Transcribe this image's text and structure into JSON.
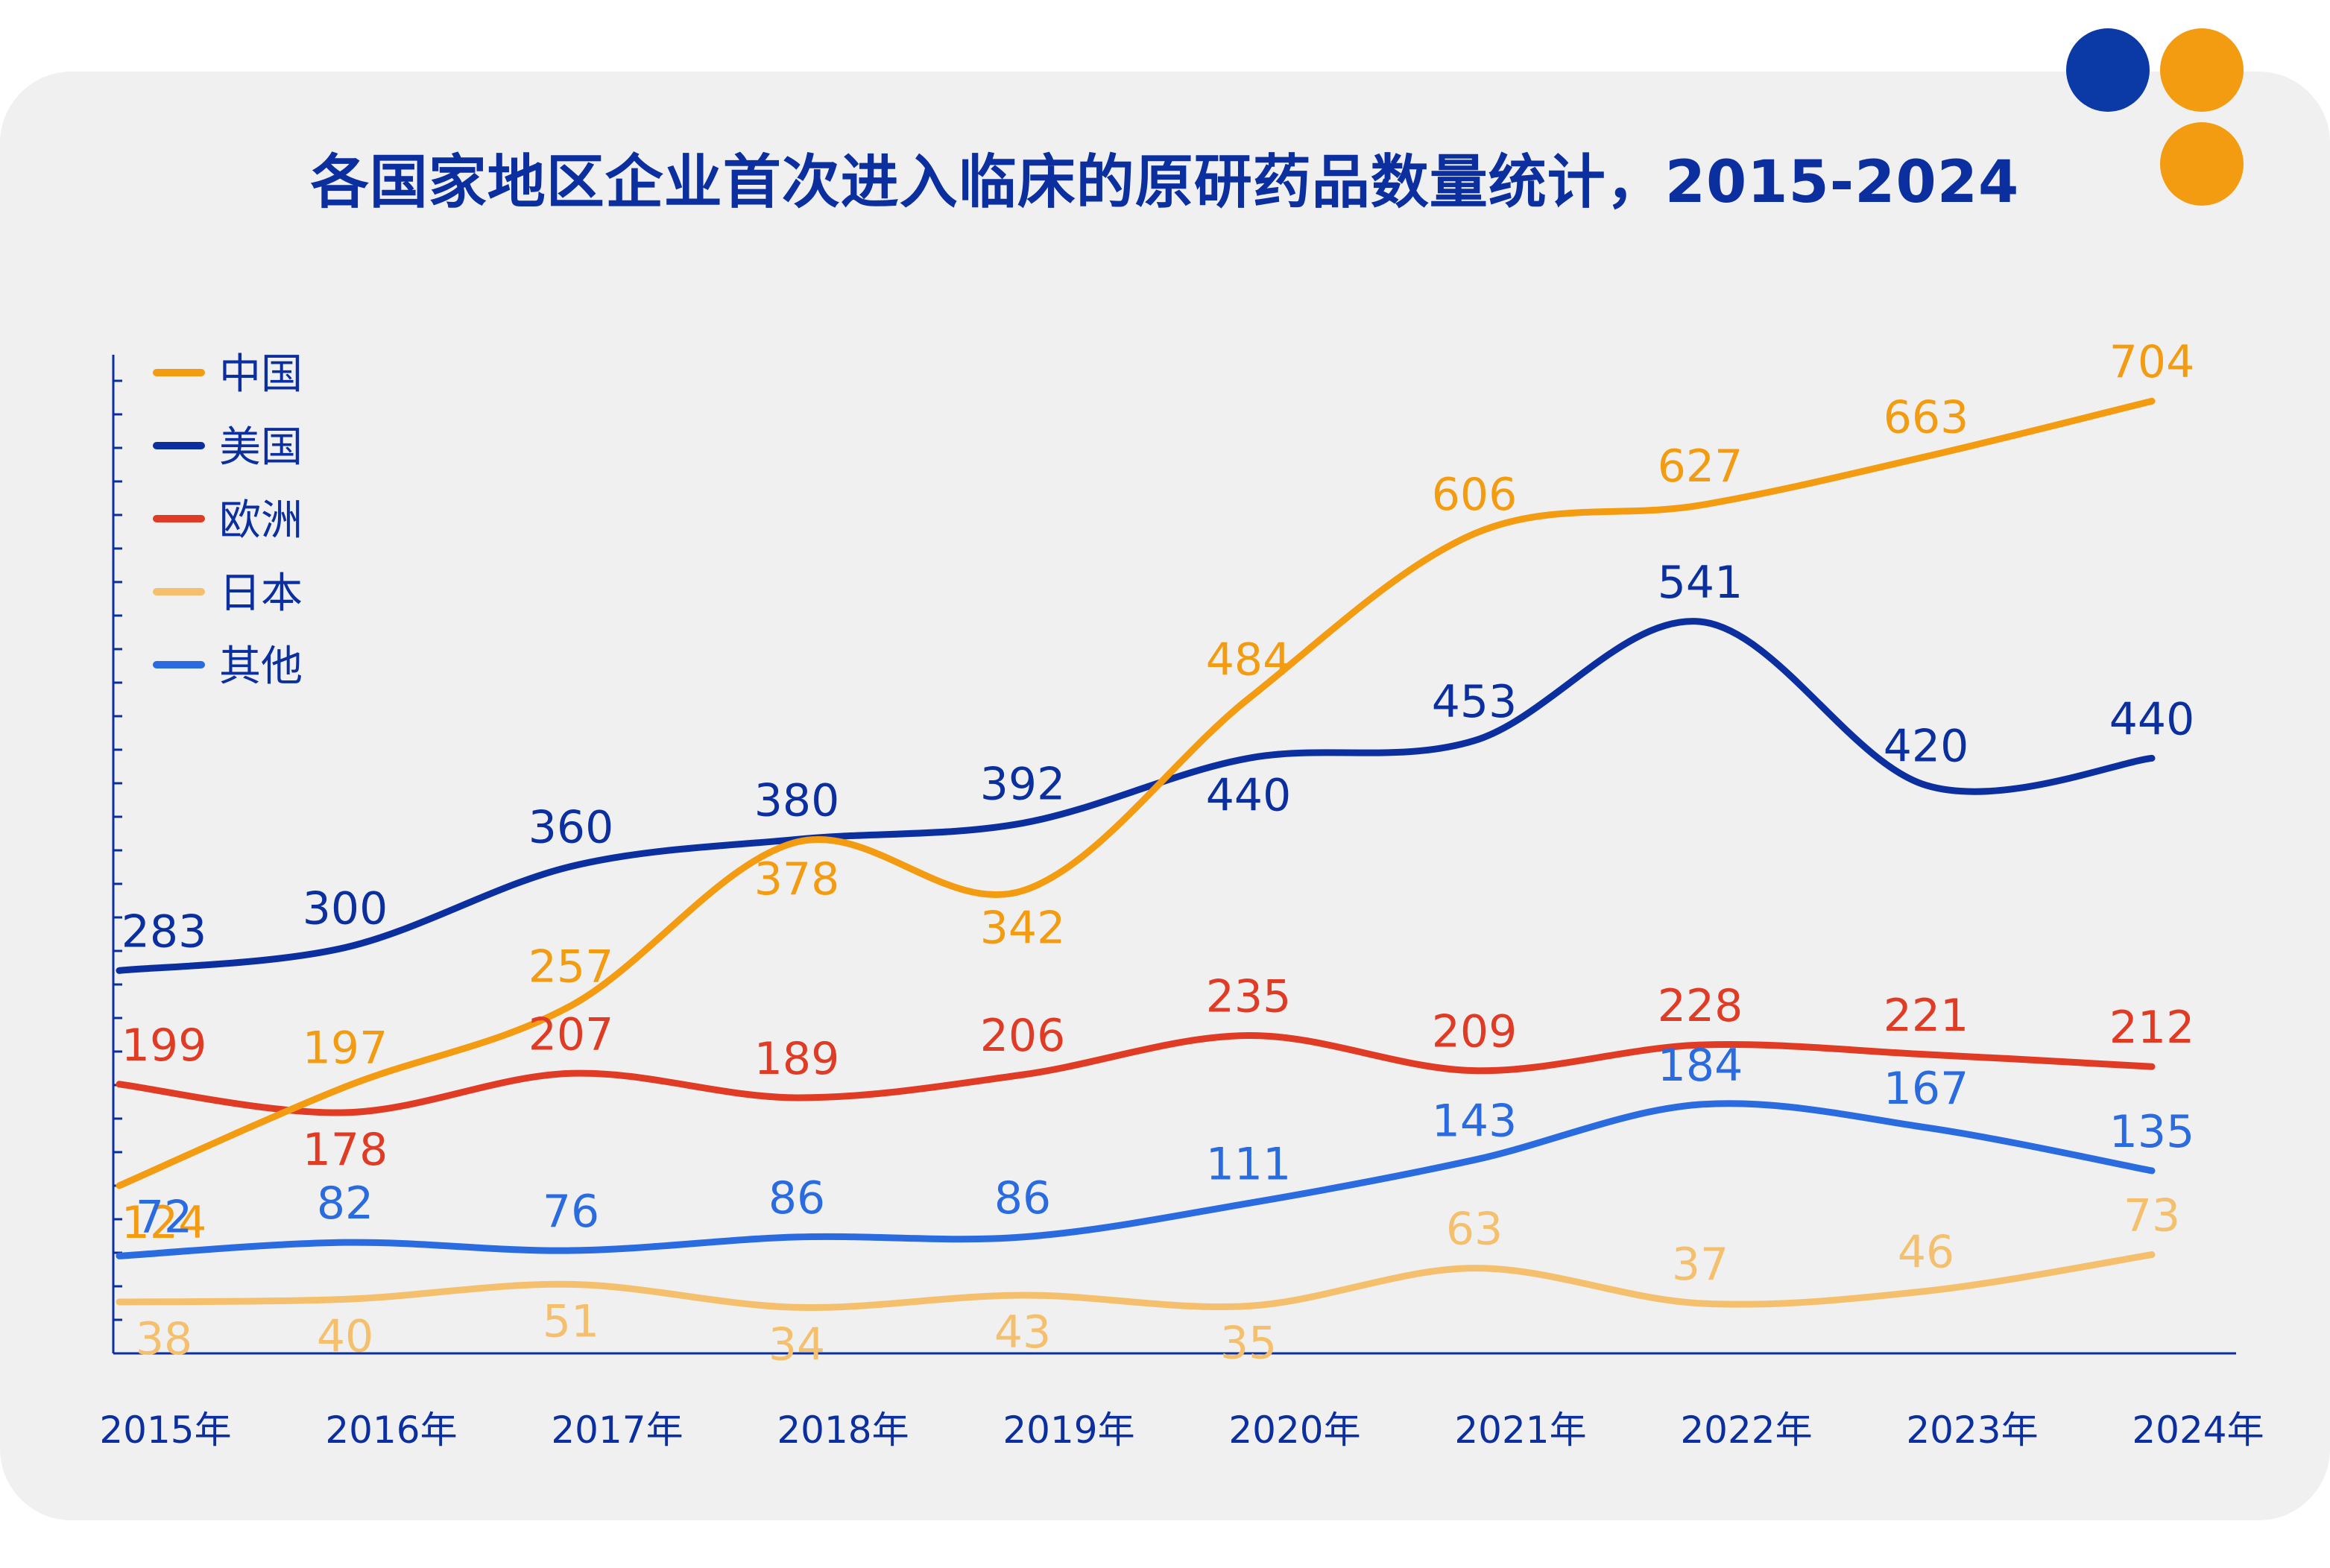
{
  "chart_data": {
    "type": "line",
    "title": "各国家地区企业首次进入临床的原研药品数量统计，2015-2024",
    "categories": [
      "2015年",
      "2016年",
      "2017年",
      "2018年",
      "2019年",
      "2020年",
      "2021年",
      "2022年",
      "2023年",
      "2024年"
    ],
    "series": [
      {
        "name": "中国",
        "color": "#f39c12",
        "values": [
          124,
          197,
          257,
          378,
          342,
          484,
          606,
          627,
          663,
          704
        ]
      },
      {
        "name": "美国",
        "color": "#0b2f9f",
        "values": [
          283,
          300,
          360,
          380,
          392,
          440,
          453,
          541,
          420,
          440
        ]
      },
      {
        "name": "欧洲",
        "color": "#e03b24",
        "values": [
          199,
          178,
          207,
          189,
          206,
          235,
          209,
          228,
          221,
          212
        ]
      },
      {
        "name": "日本",
        "color": "#f5c06e",
        "values": [
          38,
          40,
          51,
          34,
          43,
          35,
          63,
          37,
          46,
          73
        ]
      },
      {
        "name": "其他",
        "color": "#2a6be0",
        "values": [
          72,
          82,
          76,
          86,
          86,
          111,
          143,
          184,
          167,
          135
        ]
      }
    ],
    "xlabel": "",
    "ylabel": "",
    "y_tick_labels": false,
    "grid": false,
    "legend": "top-left"
  },
  "theme": {
    "title_color": "#0b2f9f",
    "axis_color": "#0b2f9f",
    "card_background": "#f0f0f0",
    "dot_blue": "#0b3aa6",
    "dot_orange": "#f39c12"
  }
}
